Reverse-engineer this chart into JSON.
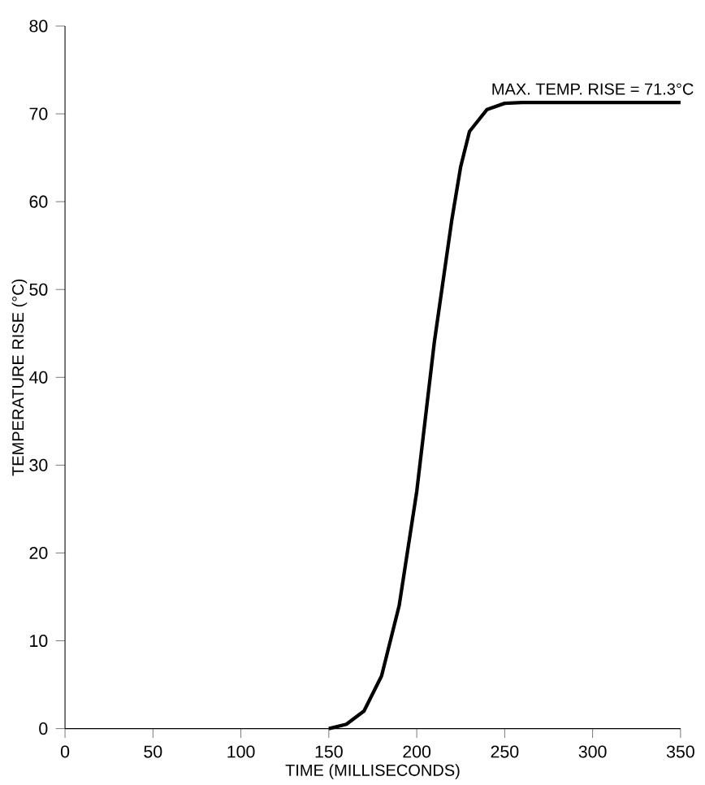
{
  "chart_data": {
    "type": "line",
    "xlabel": "TIME (MILLISECONDS)",
    "ylabel": "TEMPERATURE RISE (°C)",
    "xlim": [
      0,
      350
    ],
    "ylim": [
      0,
      80
    ],
    "xticks": [
      0,
      50,
      100,
      150,
      200,
      250,
      300,
      350
    ],
    "yticks": [
      0,
      10,
      20,
      30,
      40,
      50,
      60,
      70,
      80
    ],
    "x": [
      150,
      160,
      170,
      180,
      190,
      200,
      210,
      220,
      225,
      230,
      240,
      250,
      260,
      350
    ],
    "values": [
      0,
      0.5,
      2,
      6,
      14,
      27,
      44,
      58,
      64,
      68,
      70.5,
      71.2,
      71.3,
      71.3
    ],
    "color": "#000000",
    "annotations": [
      {
        "text": "MAX. TEMP. RISE = 71.3°C",
        "x": 300,
        "y": 71.3
      }
    ]
  }
}
